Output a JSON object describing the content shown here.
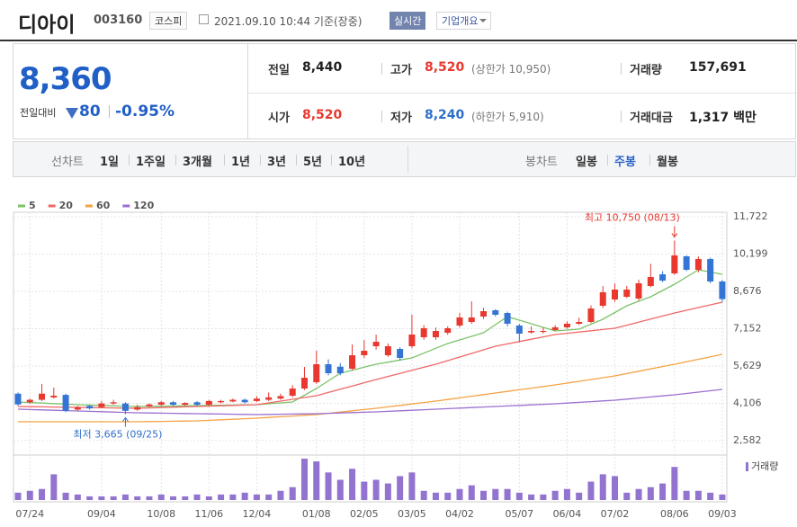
{
  "header": {
    "name": "디아이",
    "code": "003160",
    "market": "코스피",
    "timestamp": "2021.09.10 10:44 기준(장중)",
    "realtime": "실시간",
    "company_info": "기업개요"
  },
  "quote": {
    "price": "8,360",
    "change_label": "전일대비",
    "change": "80",
    "change_rate": "-0.95%",
    "stats": [
      {
        "label": "전일",
        "value": "8,440"
      },
      {
        "label": "고가",
        "value": "8,520",
        "note": "(상한가 10,950)",
        "color": "#e8382f"
      },
      {
        "label": "거래량",
        "value": "157,691"
      },
      {
        "label": "시가",
        "value": "8,520",
        "color": "#e8382f"
      },
      {
        "label": "저가",
        "value": "8,240",
        "note": "(하한가 5,910)",
        "color": "#2f6fc9"
      },
      {
        "label": "거래대금",
        "value": "1,317 백만"
      }
    ]
  },
  "tabs": {
    "line_label": "선차트",
    "line_periods": [
      "1일",
      "1주일",
      "3개월",
      "1년",
      "3년",
      "5년",
      "10년"
    ],
    "candle_label": "봉차트",
    "candle_periods": [
      "일봉",
      "주봉",
      "월봉"
    ],
    "selected": "주봉"
  },
  "chart_data": {
    "type": "candlestick",
    "categories": [
      null,
      "07/24",
      null,
      null,
      null,
      null,
      null,
      "09/04",
      null,
      null,
      null,
      null,
      "10/08",
      null,
      null,
      null,
      "11/06",
      null,
      null,
      null,
      "12/04",
      null,
      null,
      null,
      null,
      "01/08",
      null,
      null,
      null,
      "02/05",
      null,
      null,
      null,
      "03/05",
      null,
      null,
      null,
      "04/02",
      null,
      null,
      null,
      null,
      "05/07",
      null,
      null,
      null,
      "06/04",
      null,
      null,
      null,
      "07/02",
      null,
      null,
      null,
      null,
      "08/06",
      null,
      null,
      null,
      "09/03"
    ],
    "open": [
      4500,
      4150,
      4250,
      4350,
      4450,
      3850,
      4000,
      3950,
      4100,
      4100,
      3850,
      3980,
      4050,
      4150,
      4050,
      4150,
      4050,
      4150,
      4180,
      4250,
      4200,
      4250,
      4300,
      4416,
      4710,
      4967,
      5702,
      5600,
      5518,
      6069,
      6436,
      6069,
      6326,
      6436,
      6803,
      6803,
      6987,
      7280,
      7427,
      7647,
      7904,
      7794,
      7280,
      7000,
      7020,
      7100,
      7207,
      7354,
      7427,
      8088,
      8345,
      8455,
      8382,
      8895,
      9372,
      9409,
      10106,
      9556,
      9996,
      9079
    ],
    "high": [
      4550,
      4300,
      4900,
      4750,
      4500,
      4000,
      4050,
      4200,
      4250,
      4150,
      4050,
      4100,
      4200,
      4200,
      4150,
      4200,
      4250,
      4250,
      4300,
      4300,
      4400,
      4550,
      4500,
      4850,
      5592,
      6252,
      5900,
      5750,
      6509,
      6693,
      6913,
      6550,
      6400,
      7721,
      7300,
      7200,
      7250,
      7800,
      8271,
      8000,
      7950,
      7850,
      7350,
      7250,
      7200,
      7300,
      7450,
      7600,
      8100,
      8900,
      9000,
      8900,
      9150,
      9800,
      9500,
      10750,
      10150,
      10100,
      10050,
      9150
    ],
    "low": [
      4000,
      4100,
      4200,
      4300,
      3750,
      3800,
      3850,
      3900,
      4050,
      3665,
      3800,
      3950,
      4000,
      4000,
      4000,
      4000,
      4000,
      4100,
      4150,
      4100,
      4150,
      4200,
      4250,
      4350,
      4650,
      4900,
      5250,
      5250,
      5450,
      5950,
      6300,
      6000,
      5850,
      6350,
      6700,
      6700,
      6900,
      7200,
      7350,
      7550,
      7650,
      7250,
      6600,
      6950,
      6950,
      7050,
      7150,
      7300,
      7380,
      8000,
      8250,
      8400,
      8300,
      8850,
      9050,
      9350,
      9500,
      9450,
      9000,
      8240
    ],
    "close": [
      4060,
      4250,
      4500,
      4420,
      3800,
      3950,
      3900,
      4100,
      4150,
      3800,
      3950,
      4060,
      4150,
      4050,
      4120,
      4050,
      4200,
      4200,
      4250,
      4150,
      4300,
      4350,
      4400,
      4710,
      5151,
      5702,
      5335,
      5335,
      6069,
      6252,
      6619,
      6436,
      5959,
      6913,
      7170,
      7060,
      7170,
      7611,
      7611,
      7867,
      7721,
      7354,
      6950,
      7060,
      7060,
      7207,
      7354,
      7427,
      7977,
      8638,
      8749,
      8749,
      9005,
      9262,
      9115,
      10143,
      9556,
      9996,
      9079,
      8360
    ],
    "up_color": "#e8382f",
    "down_color": "#3474d4",
    "series": [
      {
        "name": "5",
        "color": "#7cc36a",
        "values": [
          4160,
          4138,
          4116,
          4094,
          4072,
          4050,
          4035,
          4020,
          4005,
          3990,
          3976,
          3983,
          3991,
          3998,
          4006,
          4013,
          4020,
          4028,
          4035,
          4043,
          4050,
          4087,
          4123,
          4160,
          4435,
          4710,
          5023,
          5335,
          5457,
          5580,
          5702,
          5788,
          5873,
          5959,
          6155,
          6350,
          6546,
          6693,
          6840,
          6987,
          7317,
          7647,
          7501,
          7354,
          7207,
          7060,
          7097,
          7133,
          7335,
          7537,
          7812,
          8088,
          8272,
          8455,
          8712,
          8969,
          9263,
          9556,
          9464,
          9372
        ]
      },
      {
        "name": "20",
        "color": "#f06868",
        "values": [
          3976,
          3969,
          3961,
          3954,
          3946,
          3939,
          3932,
          3925,
          3917,
          3910,
          3903,
          3918,
          3932,
          3947,
          3961,
          3976,
          3991,
          4005,
          4020,
          4035,
          4050,
          4123,
          4196,
          4270,
          4343,
          4416,
          4548,
          4680,
          4813,
          4945,
          5077,
          5202,
          5327,
          5452,
          5577,
          5702,
          5849,
          5996,
          6142,
          6289,
          6436,
          6531,
          6627,
          6722,
          6818,
          6913,
          6964,
          7016,
          7067,
          7119,
          7170,
          7295,
          7420,
          7544,
          7669,
          7794,
          7904,
          8015,
          8125,
          8235
        ]
      },
      {
        "name": "60",
        "color": "#f5a345",
        "values": [
          3352,
          3352,
          3352,
          3352,
          3352,
          3352,
          3352,
          3352,
          3352,
          3352,
          3352,
          3359,
          3367,
          3374,
          3382,
          3389,
          3411,
          3433,
          3455,
          3477,
          3499,
          3528,
          3558,
          3587,
          3617,
          3646,
          3697,
          3749,
          3800,
          3852,
          3903,
          3962,
          4020,
          4079,
          4137,
          4196,
          4262,
          4328,
          4394,
          4460,
          4526,
          4592,
          4658,
          4725,
          4791,
          4857,
          4930,
          5004,
          5077,
          5151,
          5224,
          5320,
          5415,
          5511,
          5606,
          5702,
          5803,
          5904,
          6005,
          6106
        ]
      },
      {
        "name": "120",
        "color": "#9b6fd0",
        "values": [
          3866,
          3851,
          3837,
          3822,
          3808,
          3793,
          3778,
          3764,
          3749,
          3734,
          3719,
          3712,
          3704,
          3697,
          3690,
          3682,
          3675,
          3668,
          3660,
          3653,
          3646,
          3653,
          3660,
          3668,
          3675,
          3682,
          3697,
          3712,
          3726,
          3741,
          3756,
          3778,
          3800,
          3822,
          3844,
          3866,
          3888,
          3910,
          3932,
          3954,
          3976,
          3998,
          4020,
          4042,
          4064,
          4086,
          4115,
          4145,
          4174,
          4204,
          4233,
          4277,
          4321,
          4365,
          4409,
          4453,
          4508,
          4563,
          4619,
          4674
        ]
      }
    ],
    "volume": {
      "name": "거래량",
      "color": "#9273cf",
      "values": [
        8,
        10,
        12,
        28,
        8,
        6,
        4,
        4,
        4,
        6,
        4,
        4,
        6,
        4,
        4,
        6,
        4,
        6,
        6,
        8,
        6,
        6,
        10,
        14,
        45,
        42,
        30,
        22,
        34,
        20,
        22,
        18,
        26,
        30,
        10,
        8,
        8,
        12,
        16,
        10,
        12,
        12,
        8,
        6,
        6,
        10,
        12,
        8,
        20,
        28,
        26,
        8,
        12,
        14,
        18,
        36,
        10,
        10,
        8,
        6
      ]
    },
    "ylim": [
      2582,
      11722
    ],
    "yticks": [
      {
        "value": 11722,
        "label": "11,722"
      },
      {
        "value": 10199,
        "label": "10,199"
      },
      {
        "value": 8676,
        "label": "8,676"
      },
      {
        "value": 7152,
        "label": "7,152"
      },
      {
        "value": 5629,
        "label": "5,629"
      },
      {
        "value": 4106,
        "label": "4,106"
      },
      {
        "value": 2582,
        "label": "2,582"
      }
    ],
    "grid": true,
    "annotations": {
      "high": "최고 10,750 (08/13)",
      "low": "최저 3,665 (09/25)"
    }
  }
}
